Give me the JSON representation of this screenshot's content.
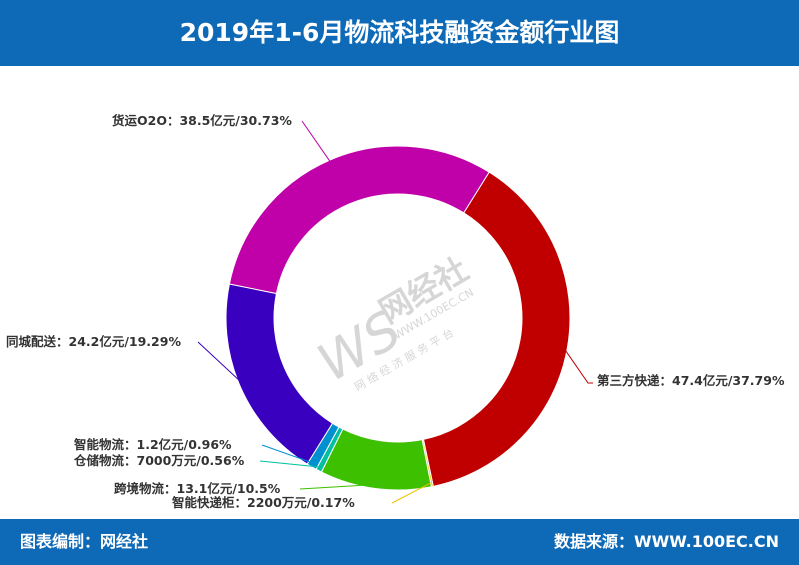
{
  "header": {
    "title": "2019年1-6月物流科技融资金额行业图"
  },
  "footer": {
    "left": "图表编制：网经社",
    "right": "数据来源：WWW.100EC.CN"
  },
  "watermark": {
    "brand": "网经社",
    "url": "WWW.100EC.CN",
    "tagline": "网 络 经 济 服 务 平 台",
    "logo": "WS"
  },
  "colors": {
    "header_bg": "#0e6ab6",
    "footer_bg": "#0e6ab6"
  },
  "chart_data": {
    "type": "pie",
    "style": "donut",
    "title": "2019年1-6月物流科技融资金额行业图",
    "unit": "亿元",
    "slices": [
      {
        "name": "第三方快递",
        "value": 47.4,
        "percent": 37.79,
        "label": "第三方快递：47.4亿元/37.79%",
        "color": "#c00000"
      },
      {
        "name": "智能快递柜",
        "value": 0.22,
        "percent": 0.17,
        "label": "智能快递柜：2200万元/0.17%",
        "color": "#f0c000"
      },
      {
        "name": "跨境物流",
        "value": 13.1,
        "percent": 10.5,
        "label": "跨境物流：13.1亿元/10.5%",
        "color": "#3cc000"
      },
      {
        "name": "仓储物流",
        "value": 0.7,
        "percent": 0.56,
        "label": "仓储物流：7000万元/0.56%",
        "color": "#00c0a0"
      },
      {
        "name": "智能物流",
        "value": 1.2,
        "percent": 0.96,
        "label": "智能物流：1.2亿元/0.96%",
        "color": "#0090d0"
      },
      {
        "name": "同城配送",
        "value": 24.2,
        "percent": 19.29,
        "label": "同城配送：24.2亿元/19.29%",
        "color": "#3a00c0"
      },
      {
        "name": "货运O2O",
        "value": 38.5,
        "percent": 30.73,
        "label": "货运O2O：38.5亿元/30.73%",
        "color": "#c000a8"
      }
    ]
  }
}
